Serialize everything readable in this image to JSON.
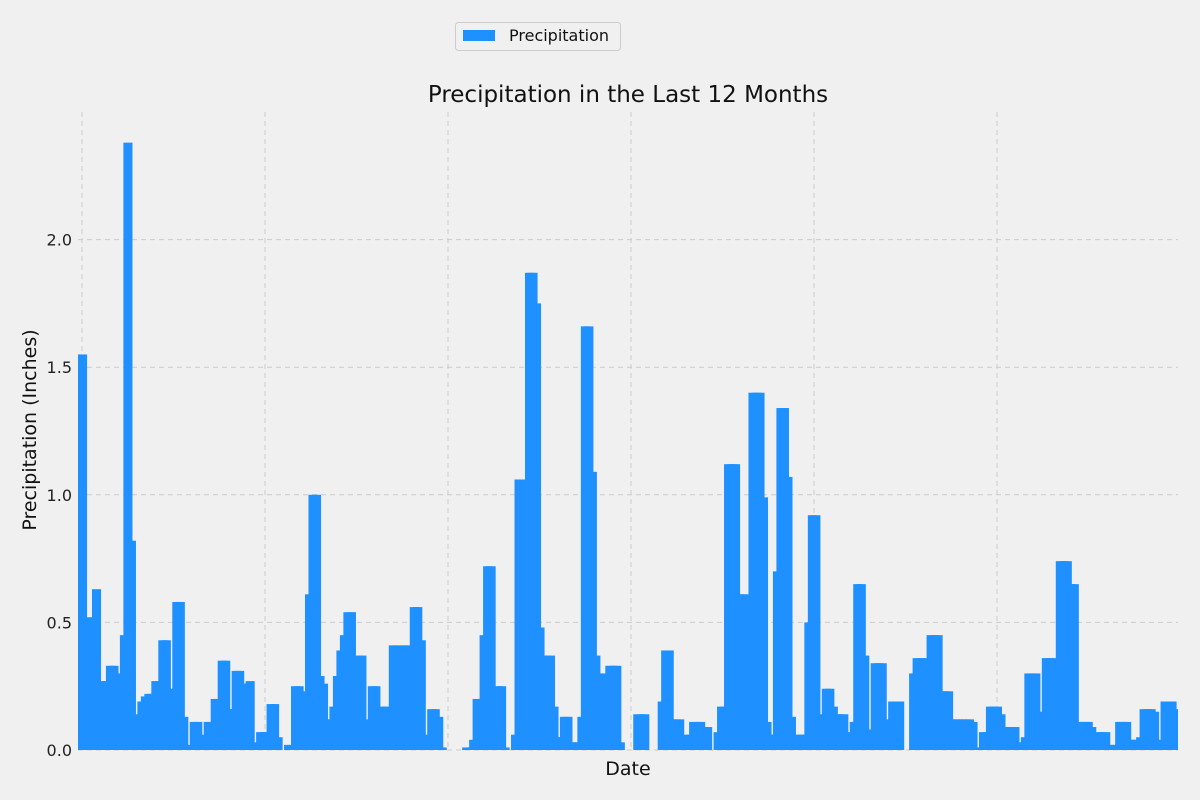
{
  "chart_data": {
    "type": "bar",
    "title": "Precipitation in the Last 12 Months",
    "xlabel": "Date",
    "ylabel": "Precipitation (Inches)",
    "ylim": [
      0,
      2.5
    ],
    "yticks": [
      "0.0",
      "0.5",
      "1.0",
      "1.5",
      "2.0"
    ],
    "grid": true,
    "legend_position": "top-center",
    "colors": {
      "bar": "#1e90ff",
      "background": "#f0f0f0",
      "grid": "#cbcbcb"
    },
    "series": [
      {
        "name": "Precipitation",
        "values": [
          1.55,
          0.07,
          0.52,
          0.52,
          0.63,
          0.25,
          0.27,
          0.27,
          0.33,
          0.33,
          0.28,
          0.3,
          0.45,
          2.38,
          0.82,
          0.13,
          0.14,
          0.19,
          0.21,
          0.22,
          0.22,
          0.27,
          0.27,
          0.43,
          0.43,
          0.24,
          0.24,
          0.58,
          0.58,
          0.13,
          0.02,
          0,
          0.11,
          0.11,
          0.01,
          0.06,
          0.11,
          0.11,
          0.2,
          0.2,
          0.35,
          0.35,
          0.16,
          0.16,
          0.31,
          0.31,
          0.26,
          0.26,
          0.27,
          0.03,
          0,
          0.07,
          0.07,
          0.07,
          0.18,
          0.18,
          0.05,
          0,
          0,
          0.02,
          0.02,
          0.25,
          0.25,
          0.09,
          0.23,
          0.61,
          1,
          1,
          0.29,
          0.26,
          0.12,
          0.12,
          0.17,
          0.29,
          0.39,
          0.45,
          0.54,
          0.54,
          0.07,
          0.37,
          0.37,
          0.05,
          0.12,
          0.25,
          0.25,
          0.06,
          0.17,
          0.17,
          0.12,
          0.41,
          0.41,
          0.27,
          0.41,
          0.41,
          0.39,
          0.56,
          0.56,
          0.43,
          0.06,
          0.02,
          0.16,
          0.16,
          0.13,
          0.01,
          0,
          0,
          0,
          0,
          0,
          0,
          0.01,
          0.01,
          0.04,
          0.2,
          0.2,
          0.45,
          0.72,
          0.72,
          0.02,
          0.25,
          0.25,
          0.01,
          0,
          0,
          0.06,
          1.06,
          1.06,
          0.15,
          1.87,
          1.87,
          1.75,
          0.48,
          0.37,
          0.37,
          0.37,
          0.17,
          0.05,
          0.05,
          0.13,
          0.13,
          0.03,
          0.03,
          0.03,
          0.13,
          1.66,
          1.66,
          1.09,
          0.37,
          0.3,
          0.3,
          0.13,
          0.33,
          0.33,
          0.33,
          0.03,
          0,
          0,
          0,
          0,
          0.14,
          0.14,
          0.14,
          0,
          0,
          0,
          0,
          0.19,
          0.39,
          0.39,
          0.12,
          0.12,
          0.12,
          0.03,
          0.06,
          0.06,
          0.11,
          0.11,
          0.11,
          0.09,
          0.09,
          0,
          0,
          0.07,
          0.17,
          0.17,
          1.12,
          1.12,
          1.12,
          0.61,
          0.61,
          0.61,
          0.48,
          1.4,
          1.4,
          1.4,
          0.99,
          0.11,
          0.06,
          0.06,
          0.7,
          1.34,
          1.34,
          1.07,
          0.13,
          0.01,
          0.06,
          0.06,
          0.06,
          0.5,
          0.92,
          0.92,
          0.14,
          0.11,
          0.24,
          0.24,
          0.17,
          0.14,
          0.14,
          0.14,
          0.01,
          0.07,
          0.11,
          0.65,
          0.65,
          0.37,
          0.08,
          0.08,
          0.34,
          0.34,
          0.34,
          0.07,
          0.12,
          0.19,
          0.19,
          0.19,
          0,
          0,
          0,
          0.3,
          0.36,
          0.36,
          0.36,
          0.29,
          0.45,
          0.45,
          0.45,
          0.23,
          0.23,
          0.23,
          0.12,
          0.12,
          0.12,
          0.12,
          0.12,
          0.12,
          0.11,
          0.01,
          0.01,
          0.07,
          0.07,
          0.17,
          0.17,
          0.17,
          0.14,
          0.03,
          0.09,
          0.09,
          0.09,
          0.03,
          0.03,
          0.05,
          0.3,
          0.3,
          0.3,
          0.15,
          0.14,
          0.36,
          0.36,
          0.36,
          0.17,
          0.74,
          0.74,
          0.74,
          0.65,
          0.65,
          0.08,
          0.11,
          0.11,
          0.11,
          0.09,
          0.05,
          0.07,
          0.07,
          0.07,
          0.02,
          0.02,
          0.02,
          0.11,
          0.11,
          0.11,
          0.04,
          0.04,
          0.04,
          0.05,
          0.16,
          0.16,
          0.16,
          0.15,
          0.04,
          0.02,
          0.19,
          0.19,
          0.19,
          0.16,
          0.13
        ]
      }
    ]
  }
}
